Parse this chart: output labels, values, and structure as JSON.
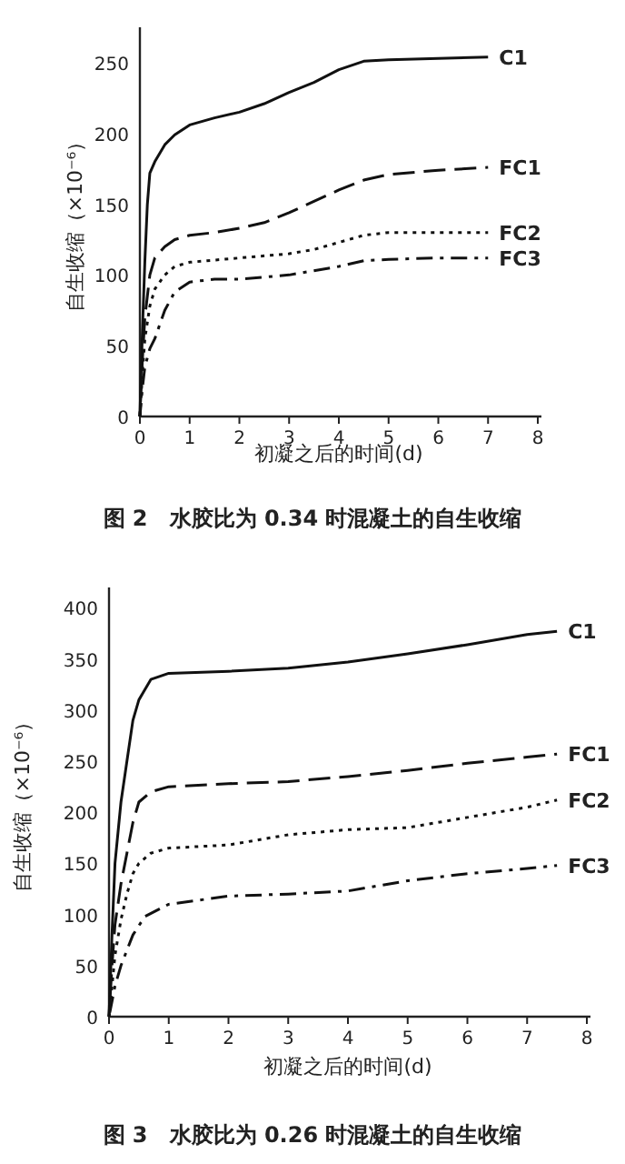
{
  "chart_data": [
    {
      "type": "line",
      "title": "图 2　水胶比为 0.34 时混凝土的自生收缩",
      "xlabel": "初凝之后的时间(d)",
      "ylabel": "自生收缩（×10⁻⁶）",
      "xlim": [
        0,
        8
      ],
      "ylim": [
        0,
        275
      ],
      "xticks": [
        0,
        1,
        2,
        3,
        4,
        5,
        6,
        7,
        8
      ],
      "yticks": [
        0,
        50,
        100,
        150,
        200,
        250
      ],
      "grid": false,
      "marker": "none",
      "series": [
        {
          "name": "C1",
          "color": "#111111",
          "line_style": "solid",
          "x": [
            0,
            0.05,
            0.1,
            0.15,
            0.2,
            0.3,
            0.5,
            0.7,
            1,
            1.5,
            2,
            2.5,
            3,
            3.5,
            4,
            4.5,
            5,
            6,
            7
          ],
          "values": [
            0,
            60,
            110,
            150,
            172,
            180,
            192,
            199,
            206,
            211,
            215,
            221,
            229,
            236,
            245,
            251,
            252,
            253,
            254
          ]
        },
        {
          "name": "FC1",
          "color": "#111111",
          "line_style": "dashed",
          "x": [
            0,
            0.05,
            0.1,
            0.2,
            0.3,
            0.5,
            0.7,
            1,
            1.5,
            2,
            2.5,
            3,
            3.5,
            4,
            4.5,
            5,
            6,
            7
          ],
          "values": [
            0,
            40,
            70,
            100,
            112,
            120,
            125,
            128,
            130,
            133,
            137,
            144,
            152,
            160,
            167,
            171,
            174,
            176
          ]
        },
        {
          "name": "FC2",
          "color": "#111111",
          "line_style": "dotted",
          "x": [
            0,
            0.05,
            0.1,
            0.2,
            0.3,
            0.5,
            0.7,
            1,
            2,
            3,
            3.5,
            4,
            4.5,
            5,
            6,
            7
          ],
          "values": [
            0,
            30,
            55,
            78,
            90,
            100,
            106,
            109,
            112,
            115,
            118,
            123,
            128,
            130,
            130,
            130
          ]
        },
        {
          "name": "FC3",
          "color": "#111111",
          "line_style": "dashdot",
          "x": [
            0,
            0.05,
            0.1,
            0.2,
            0.3,
            0.5,
            0.7,
            1,
            1.5,
            2,
            3,
            4,
            4.5,
            5,
            6,
            7
          ],
          "values": [
            0,
            20,
            35,
            48,
            55,
            75,
            88,
            95,
            97,
            97,
            100,
            106,
            110,
            111,
            112,
            112
          ]
        }
      ]
    },
    {
      "type": "line",
      "title": "图 3　水胶比为 0.26 时混凝土的自生收缩",
      "xlabel": "初凝之后的时间(d)",
      "ylabel": "自生收缩（×10⁻⁶）",
      "xlim": [
        0,
        8
      ],
      "ylim": [
        0,
        420
      ],
      "xticks": [
        0,
        1,
        2,
        3,
        4,
        5,
        6,
        7,
        8
      ],
      "yticks": [
        0,
        50,
        100,
        150,
        200,
        250,
        300,
        350,
        400
      ],
      "grid": false,
      "marker": "none",
      "series": [
        {
          "name": "C1",
          "color": "#111111",
          "line_style": "solid",
          "x": [
            0,
            0.05,
            0.1,
            0.2,
            0.3,
            0.4,
            0.5,
            0.7,
            1,
            2,
            3,
            4,
            5,
            6,
            7,
            7.5
          ],
          "values": [
            0,
            80,
            150,
            210,
            250,
            290,
            310,
            330,
            336,
            338,
            341,
            347,
            355,
            364,
            374,
            377
          ]
        },
        {
          "name": "FC1",
          "color": "#111111",
          "line_style": "dashed",
          "x": [
            0,
            0.05,
            0.1,
            0.2,
            0.3,
            0.4,
            0.5,
            0.7,
            1,
            2,
            3,
            4,
            5,
            6,
            7,
            7.5
          ],
          "values": [
            0,
            50,
            90,
            130,
            160,
            190,
            210,
            220,
            225,
            228,
            230,
            235,
            241,
            248,
            254,
            257
          ]
        },
        {
          "name": "FC2",
          "color": "#111111",
          "line_style": "dotted",
          "x": [
            0,
            0.05,
            0.1,
            0.2,
            0.3,
            0.4,
            0.5,
            0.7,
            1,
            2,
            3,
            4,
            5,
            6,
            7,
            7.5
          ],
          "values": [
            0,
            30,
            60,
            95,
            120,
            140,
            150,
            160,
            165,
            168,
            178,
            183,
            185,
            195,
            205,
            212
          ]
        },
        {
          "name": "FC3",
          "color": "#111111",
          "line_style": "dashdot",
          "x": [
            0,
            0.1,
            0.2,
            0.3,
            0.4,
            0.6,
            1,
            2,
            3,
            4,
            5,
            6,
            7,
            7.5
          ],
          "values": [
            0,
            30,
            50,
            65,
            80,
            98,
            110,
            118,
            120,
            123,
            133,
            140,
            145,
            148
          ]
        }
      ]
    }
  ]
}
